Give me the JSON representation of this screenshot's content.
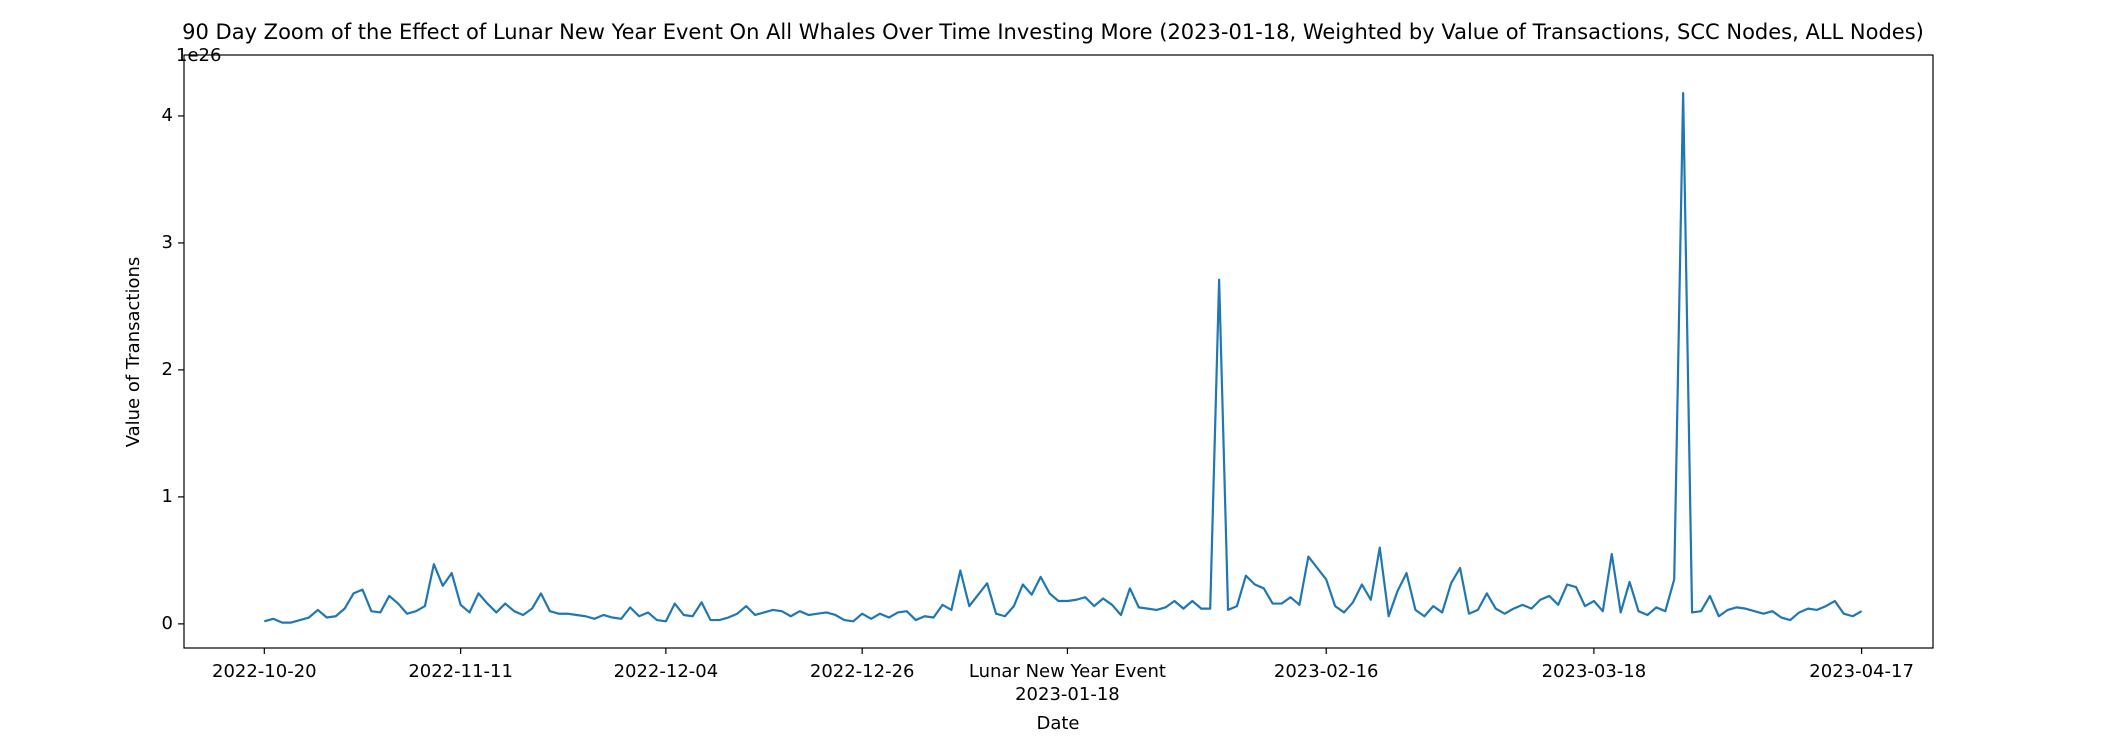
{
  "chart_data": {
    "type": "line",
    "title": "90 Day Zoom of the Effect of Lunar New Year Event On All Whales Over Time Investing More (2023-01-18, Weighted by Value of Transactions, SCC Nodes, ALL Nodes)",
    "x_label": "Date",
    "y_label": "Value of Transactions",
    "y_offset_label": "1e26",
    "event": {
      "date": "2023-01-18",
      "label": "Lunar New Year Event"
    },
    "x": [
      "2022-10-20",
      "2022-10-21",
      "2022-10-22",
      "2022-10-23",
      "2022-10-24",
      "2022-10-25",
      "2022-10-26",
      "2022-10-27",
      "2022-10-28",
      "2022-10-29",
      "2022-10-30",
      "2022-10-31",
      "2022-11-01",
      "2022-11-02",
      "2022-11-03",
      "2022-11-04",
      "2022-11-05",
      "2022-11-06",
      "2022-11-07",
      "2022-11-08",
      "2022-11-09",
      "2022-11-10",
      "2022-11-11",
      "2022-11-12",
      "2022-11-13",
      "2022-11-14",
      "2022-11-15",
      "2022-11-16",
      "2022-11-17",
      "2022-11-18",
      "2022-11-19",
      "2022-11-20",
      "2022-11-21",
      "2022-11-22",
      "2022-11-23",
      "2022-11-24",
      "2022-11-25",
      "2022-11-26",
      "2022-11-27",
      "2022-11-28",
      "2022-11-29",
      "2022-11-30",
      "2022-12-01",
      "2022-12-02",
      "2022-12-03",
      "2022-12-04",
      "2022-12-05",
      "2022-12-06",
      "2022-12-07",
      "2022-12-08",
      "2022-12-09",
      "2022-12-10",
      "2022-12-11",
      "2022-12-12",
      "2022-12-13",
      "2022-12-14",
      "2022-12-15",
      "2022-12-16",
      "2022-12-17",
      "2022-12-18",
      "2022-12-19",
      "2022-12-20",
      "2022-12-21",
      "2022-12-22",
      "2022-12-23",
      "2022-12-24",
      "2022-12-25",
      "2022-12-26",
      "2022-12-27",
      "2022-12-28",
      "2022-12-29",
      "2022-12-30",
      "2022-12-31",
      "2023-01-01",
      "2023-01-02",
      "2023-01-03",
      "2023-01-04",
      "2023-01-05",
      "2023-01-06",
      "2023-01-07",
      "2023-01-08",
      "2023-01-09",
      "2023-01-10",
      "2023-01-11",
      "2023-01-12",
      "2023-01-13",
      "2023-01-14",
      "2023-01-15",
      "2023-01-16",
      "2023-01-17",
      "2023-01-18",
      "2023-01-19",
      "2023-01-20",
      "2023-01-21",
      "2023-01-22",
      "2023-01-23",
      "2023-01-24",
      "2023-01-25",
      "2023-01-26",
      "2023-01-27",
      "2023-01-28",
      "2023-01-29",
      "2023-01-30",
      "2023-01-31",
      "2023-02-01",
      "2023-02-02",
      "2023-02-03",
      "2023-02-04",
      "2023-02-05",
      "2023-02-06",
      "2023-02-07",
      "2023-02-08",
      "2023-02-09",
      "2023-02-10",
      "2023-02-11",
      "2023-02-12",
      "2023-02-13",
      "2023-02-14",
      "2023-02-15",
      "2023-02-16",
      "2023-02-17",
      "2023-02-18",
      "2023-02-19",
      "2023-02-20",
      "2023-02-21",
      "2023-02-22",
      "2023-02-23",
      "2023-02-24",
      "2023-02-25",
      "2023-02-26",
      "2023-02-27",
      "2023-02-28",
      "2023-03-01",
      "2023-03-02",
      "2023-03-03",
      "2023-03-04",
      "2023-03-05",
      "2023-03-06",
      "2023-03-07",
      "2023-03-08",
      "2023-03-09",
      "2023-03-10",
      "2023-03-11",
      "2023-03-12",
      "2023-03-13",
      "2023-03-14",
      "2023-03-15",
      "2023-03-16",
      "2023-03-17",
      "2023-03-18",
      "2023-03-19",
      "2023-03-20",
      "2023-03-21",
      "2023-03-22",
      "2023-03-23",
      "2023-03-24",
      "2023-03-25",
      "2023-03-26",
      "2023-03-27",
      "2023-03-28",
      "2023-03-29",
      "2023-03-30",
      "2023-03-31",
      "2023-04-01",
      "2023-04-02",
      "2023-04-03",
      "2023-04-04",
      "2023-04-05",
      "2023-04-06",
      "2023-04-07",
      "2023-04-08",
      "2023-04-09",
      "2023-04-10",
      "2023-04-11",
      "2023-04-12",
      "2023-04-13",
      "2023-04-14",
      "2023-04-15",
      "2023-04-16",
      "2023-04-17"
    ],
    "series": [
      {
        "name": "Value of Transactions",
        "color": "#1f77b4",
        "values": [
          0.02,
          0.04,
          0.01,
          0.01,
          0.03,
          0.05,
          0.11,
          0.05,
          0.06,
          0.12,
          0.24,
          0.27,
          0.1,
          0.09,
          0.22,
          0.16,
          0.08,
          0.1,
          0.14,
          0.47,
          0.3,
          0.4,
          0.15,
          0.09,
          0.24,
          0.16,
          0.09,
          0.16,
          0.1,
          0.07,
          0.12,
          0.24,
          0.1,
          0.08,
          0.08,
          0.07,
          0.06,
          0.04,
          0.07,
          0.05,
          0.04,
          0.13,
          0.06,
          0.09,
          0.03,
          0.02,
          0.16,
          0.07,
          0.06,
          0.17,
          0.03,
          0.03,
          0.05,
          0.08,
          0.14,
          0.07,
          0.09,
          0.11,
          0.1,
          0.06,
          0.1,
          0.07,
          0.08,
          0.09,
          0.07,
          0.03,
          0.02,
          0.08,
          0.04,
          0.08,
          0.05,
          0.09,
          0.1,
          0.03,
          0.06,
          0.05,
          0.15,
          0.11,
          0.42,
          0.14,
          0.23,
          0.32,
          0.08,
          0.06,
          0.14,
          0.31,
          0.23,
          0.37,
          0.24,
          0.18,
          0.18,
          0.19,
          0.21,
          0.14,
          0.2,
          0.15,
          0.07,
          0.28,
          0.13,
          0.12,
          0.11,
          0.13,
          0.18,
          0.12,
          0.18,
          0.12,
          0.12,
          2.71,
          0.11,
          0.14,
          0.38,
          0.31,
          0.28,
          0.16,
          0.16,
          0.21,
          0.15,
          0.53,
          0.44,
          0.35,
          0.14,
          0.09,
          0.17,
          0.31,
          0.19,
          0.6,
          0.06,
          0.26,
          0.4,
          0.11,
          0.06,
          0.14,
          0.09,
          0.32,
          0.44,
          0.08,
          0.11,
          0.24,
          0.12,
          0.08,
          0.12,
          0.15,
          0.12,
          0.19,
          0.22,
          0.15,
          0.31,
          0.29,
          0.14,
          0.18,
          0.1,
          0.55,
          0.09,
          0.33,
          0.1,
          0.07,
          0.13,
          0.1,
          0.35,
          4.18,
          0.09,
          0.1,
          0.22,
          0.06,
          0.11,
          0.13,
          0.12,
          0.1,
          0.08,
          0.1,
          0.05,
          0.03,
          0.09,
          0.12,
          0.11,
          0.14,
          0.18,
          0.08,
          0.06,
          0.1
        ]
      }
    ],
    "xlim": [
      "2022-10-11",
      "2023-04-25"
    ],
    "xticks": [
      "2022-10-20",
      "2022-11-11",
      "2022-12-04",
      "2022-12-26",
      "2023-01-18",
      "2023-02-16",
      "2023-03-18",
      "2023-04-17"
    ],
    "ylim": [
      -0.19,
      4.48
    ],
    "yticks": [
      0,
      1,
      2,
      3,
      4
    ],
    "grid": false
  }
}
